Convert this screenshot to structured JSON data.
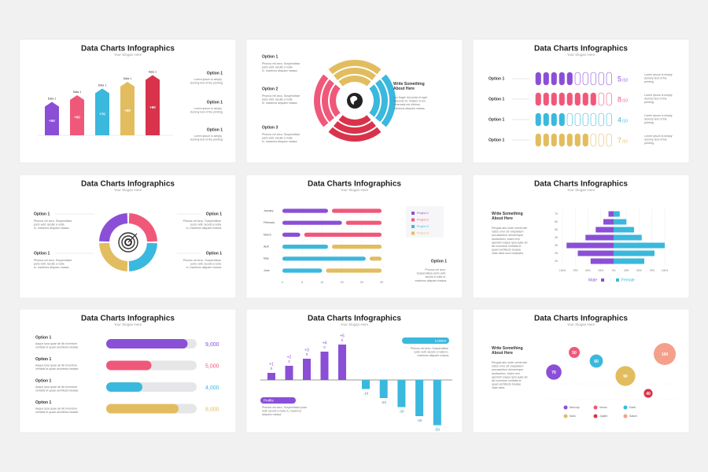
{
  "slides": [
    {
      "title": "Data Charts Infographics",
      "subtitle": "Your Slogan Here",
      "bars": {
        "labels": [
          "Data 1",
          "Data 1",
          "Data 1",
          "Data 1",
          "Data 1"
        ],
        "values": [
          50,
          60,
          70,
          80,
          90
        ],
        "value_labels": [
          "+50",
          "+60",
          "+70",
          "+80",
          "+90"
        ],
        "colors": [
          "#8a4fd6",
          "#f0587a",
          "#3bb8dd",
          "#e2bd5f",
          "#d9334b"
        ]
      },
      "options": [
        {
          "label": "Option 1",
          "text": "Lorem ipsum is simply dummy text of the printing"
        },
        {
          "label": "Option 1",
          "text": "Lorem ipsum is simply dummy text of the printing"
        },
        {
          "label": "Option 1",
          "text": "Lorem ipsum is simply dummy text of the printing"
        }
      ]
    },
    {
      "options": [
        {
          "label": "Option 1",
          "text": "Phonus vel arcu. Suspendisse justo velit, iaculis a nulla in, maximus aliquam massa."
        },
        {
          "label": "Option 2",
          "text": "Phonus vel arcu. Suspendisse justo velit, iaculis a nulla in, maximus aliquam massa."
        },
        {
          "label": "Option 3",
          "text": "Phonus vel arcu. Suspendisse justo velit, iaculis a nulla in, maximus aliquam massa."
        }
      ],
      "heading": "Write Something About Here",
      "paragraph": "Nor fluger dui porta et eget. Placerat mi. Nullam et leo venenatis est ultrices, maximus aliquam massa."
    },
    {
      "title": "Data Charts Infographics",
      "subtitle": "Your Slogan Here",
      "total": 10,
      "total_label": "/10",
      "rows": [
        {
          "label": "Option 1",
          "value": 5,
          "color": "#8a4fd6",
          "text": "Lorem ipsum is simply dummy text of the printing"
        },
        {
          "label": "Option 1",
          "value": 8,
          "color": "#f0587a",
          "text": "Lorem ipsum is simply dummy text of the printing"
        },
        {
          "label": "Option 1",
          "value": 4,
          "color": "#3bb8dd",
          "text": "Lorem ipsum is simply dummy text of the printing"
        },
        {
          "label": "Option 1",
          "value": 7,
          "color": "#e2bd5f",
          "text": "Lorem ipsum is simply dummy text of the printing"
        }
      ]
    },
    {
      "title": "Data Charts Infographics",
      "subtitle": "Your Slogan Here",
      "options": [
        {
          "label": "Option 1",
          "text": "Phonus vel arcu. Suspendisse justo velit, iaculis a nulla in, maximus aliquam massa."
        },
        {
          "label": "Option 1",
          "text": "Phonus vel arcu. Suspendisse justo velit, iaculis a nulla in, maximus aliquam massa."
        },
        {
          "label": "Option 1",
          "text": "Phonus vel arcu. Suspendisse justo velit, iaculis a nulla in, maximus aliquam massa."
        },
        {
          "label": "Option 1",
          "text": "Phonus vel arcu. Suspendisse justo velit, iaculis a nulla in, maximus aliquam massa."
        }
      ]
    },
    {
      "title": "Data Charts Infographics",
      "subtitle": "Your Slogan Here",
      "months": [
        "January",
        "February",
        "March",
        "April",
        "May",
        "June"
      ],
      "xlim": [
        0,
        25
      ],
      "xticks": [
        0,
        5,
        10,
        15,
        20,
        25
      ],
      "series": [
        {
          "name": "Project 1",
          "color": "#8a4fd6"
        },
        {
          "name": "Project 2",
          "color": "#f0587a"
        },
        {
          "name": "Project 3",
          "color": "#3bb8dd"
        },
        {
          "name": "Project 4",
          "color": "#e2bd5f"
        }
      ],
      "segments": [
        [
          {
            "series": 0,
            "start": 0,
            "end": 11.5
          },
          {
            "series": 1,
            "start": 12.5,
            "end": 25
          }
        ],
        [
          {
            "series": 0,
            "start": 0,
            "end": 15
          },
          {
            "series": 1,
            "start": 16,
            "end": 25
          }
        ],
        [
          {
            "series": 0,
            "start": 0,
            "end": 4.5
          },
          {
            "series": 1,
            "start": 5.5,
            "end": 25
          }
        ],
        [
          {
            "series": 2,
            "start": 0,
            "end": 11.5
          },
          {
            "series": 3,
            "start": 12.5,
            "end": 25
          }
        ],
        [
          {
            "series": 2,
            "start": 0,
            "end": 21
          },
          {
            "series": 3,
            "start": 22,
            "end": 25
          }
        ],
        [
          {
            "series": 2,
            "start": 0,
            "end": 10
          },
          {
            "series": 3,
            "start": 11,
            "end": 25
          }
        ]
      ],
      "option": {
        "label": "Option 1",
        "text": "Phonus vel arcu. Suspendisse justo velit, iaculis a nulla in, maximus aliquam massa."
      }
    },
    {
      "title": "Data Charts Infographics",
      "subtitle": "Your Slogan Here",
      "heading": "Write Something About Here",
      "paragraph": "Pergola aliu unde omnis iste natus error sit voluptatem accusantium doloremque laudantium, totam rem aperiam eaque ipsa quae ab illo inventore veritatis et quasi architecto beatae vitae dicta sunt explicabo.",
      "ages": [
        "70",
        "60",
        "50",
        "40",
        "30",
        "25",
        "20"
      ],
      "series": [
        {
          "name": "Male",
          "color": "#8a4fd6",
          "values": [
            10,
            20,
            35,
            55,
            92,
            70,
            45
          ]
        },
        {
          "name": "Female",
          "color": "#3bb8dd",
          "values": [
            12,
            25,
            40,
            55,
            100,
            80,
            60
          ]
        }
      ],
      "xlim": [
        -100,
        100
      ],
      "xticks": [
        {
          "value": -100,
          "label": "100%"
        },
        {
          "value": -75,
          "label": "75%"
        },
        {
          "value": -50,
          "label": "50%"
        },
        {
          "value": -25,
          "label": "25%"
        },
        {
          "value": 0,
          "label": "0%"
        },
        {
          "value": 25,
          "label": "25%"
        },
        {
          "value": 50,
          "label": "50%"
        },
        {
          "value": 75,
          "label": "75%"
        },
        {
          "value": 100,
          "label": "100%"
        }
      ]
    },
    {
      "title": "Data Charts Infographics",
      "subtitle": "Your Slogan Here",
      "max": 10000,
      "rows": [
        {
          "label": "Option 1",
          "text": "Aaque ipsa quae ab illo inventore veritatis et quasi architecto beatae",
          "value": 9000,
          "value_label": "9,000",
          "color": "#8a4fd6"
        },
        {
          "label": "Option 1",
          "text": "Aaque ipsa quae ab illo inventore veritatis et quasi architecto beatae",
          "value": 5000,
          "value_label": "5,000",
          "color": "#f0587a"
        },
        {
          "label": "Option 1",
          "text": "Aaque ipsa quae ab illo inventore veritatis et quasi architecto beatae",
          "value": 4000,
          "value_label": "4,000",
          "color": "#3bb8dd"
        },
        {
          "label": "Option 1",
          "text": "Aaque ipsa quae ab illo inventore veritatis et quasi architecto beatae",
          "value": 8000,
          "value_label": "8,000",
          "color": "#e2bd5f"
        }
      ]
    },
    {
      "title": "Data Charts Infographics",
      "subtitle": "Your Slogan Here",
      "profits": {
        "label": "Profits",
        "color": "#8a4fd6",
        "text": "Phonus vel arcu. Suspendisse justo velit, iaculis a nulla in, maximus aliquam massa.",
        "values": [
          1,
          2,
          3,
          4,
          5
        ],
        "value_labels": [
          "+1",
          "+2",
          "+3",
          "+4",
          "+5"
        ],
        "base_labels": [
          "0",
          "0",
          "0",
          "0",
          "0"
        ]
      },
      "losses": {
        "label": "Losses",
        "color": "#3bb8dd",
        "text": "Phonus vel arcu. Suspendisse justo velit, iaculis a nulla in, maximus aliquam massa.",
        "values": [
          -10,
          -20,
          -30,
          -40,
          -50
        ]
      }
    },
    {
      "title": "Data Charts Infographics",
      "subtitle": "Your Slogan Here",
      "heading": "Write Something About Here",
      "paragraph": "Pergola aliu unde omnis iste natus error sit voluptatem accusantium doloremque laudantium, totam rem aperiam eaque ipsa quae ab illo inventore veritatis et quasi architecto beatae vitae dicta.",
      "bubbles": [
        {
          "name": "Mercury",
          "value": 70,
          "color": "#8a4fd6"
        },
        {
          "name": "Venus",
          "value": 50,
          "color": "#f0587a"
        },
        {
          "name": "Earth",
          "value": 60,
          "color": "#3bb8dd"
        },
        {
          "name": "Mars",
          "value": 90,
          "color": "#e2bd5f"
        },
        {
          "name": "Jupiter",
          "value": 40,
          "color": "#d9334b"
        },
        {
          "name": "Saturn",
          "value": 100,
          "color": "#f4a08a"
        }
      ]
    }
  ]
}
